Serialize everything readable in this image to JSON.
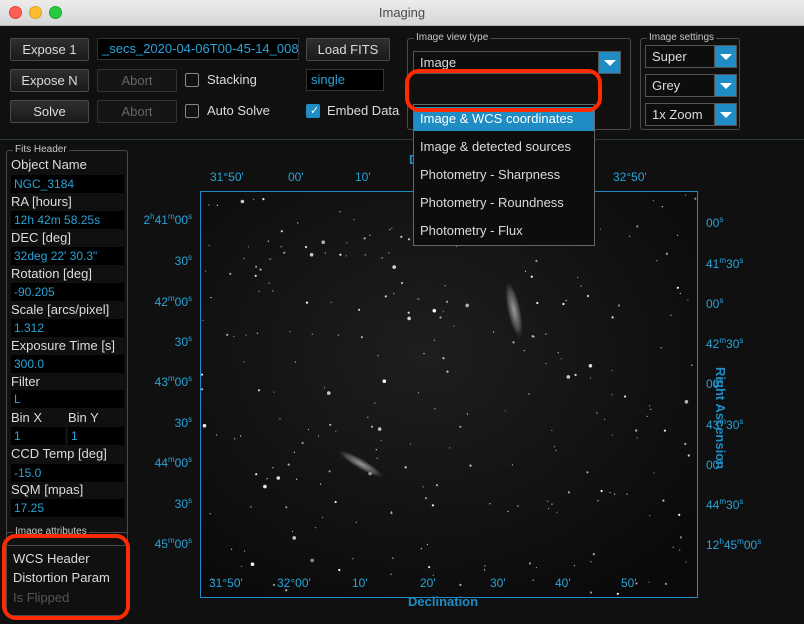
{
  "window": {
    "title": "Imaging"
  },
  "toolbar": {
    "expose1": "Expose 1",
    "exposeN": "Expose N",
    "solve": "Solve",
    "abort1": "Abort",
    "abort2": "Abort",
    "stacking_label": "Stacking",
    "stacking_checked": false,
    "auto_solve_label": "Auto Solve",
    "auto_solve_checked": false,
    "filename": "_secs_2020-04-06T00-45-14_008",
    "load_fits": "Load FITS",
    "mode_field": "single",
    "embed_data_label": "Embed Data",
    "embed_data_checked": true
  },
  "image_view_type": {
    "group_title": "Image view type",
    "current": "Image",
    "options": [
      "Image & WCS coordinates",
      "Image & detected sources",
      "Photometry - Sharpness",
      "Photometry - Roundness",
      "Photometry - Flux"
    ],
    "selected_index": 0
  },
  "image_settings": {
    "group_title": "Image settings",
    "stretch": "Super",
    "palette": "Grey",
    "zoom": "1x Zoom"
  },
  "fits_header": {
    "group_title": "Fits Header",
    "fields": [
      {
        "label": "Object Name",
        "value": "NGC_3184"
      },
      {
        "label": "RA [hours]",
        "value": "12h 42m 58.25s"
      },
      {
        "label": "DEC [deg]",
        "value": "32deg 22' 30.3\""
      },
      {
        "label": "Rotation [deg]",
        "value": "-90.205"
      },
      {
        "label": "Scale [arcs/pixel]",
        "value": "1.312"
      },
      {
        "label": "Exposure Time [s]",
        "value": "300.0"
      },
      {
        "label": "Filter",
        "value": "L"
      },
      {
        "label": "CCD Temp [deg]",
        "value": "-15.0"
      },
      {
        "label": "SQM [mpas]",
        "value": "17.25"
      }
    ],
    "bin_x_label": "Bin X",
    "bin_x_value": "1",
    "bin_y_label": "Bin Y",
    "bin_y_value": "1"
  },
  "image_attributes": {
    "group_title": "Image attributes",
    "items": [
      {
        "label": "WCS Header",
        "enabled": true
      },
      {
        "label": "Distortion Param",
        "enabled": true
      },
      {
        "label": "Is Flipped",
        "enabled": false
      }
    ]
  },
  "plot": {
    "x_axis_title": "Declination",
    "y_axis_title": "Right Ascension",
    "top_axis_title_partial": "D",
    "top_ticks": [
      "31°50'",
      "00'",
      "10'",
      "32°50'"
    ],
    "bottom_ticks": [
      "31°50'",
      "32°00'",
      "10'",
      "20'",
      "30'",
      "40'",
      "50'"
    ],
    "left_ticks": [
      {
        "main": "2",
        "sup": "h",
        "main2": "41",
        "sup2": "m",
        "main3": "00",
        "sup3": "s"
      },
      {
        "main": "30",
        "sup": "s"
      },
      {
        "main": "42",
        "sup": "m",
        "main2": "00",
        "sup2": "s"
      },
      {
        "main": "30",
        "sup": "s"
      },
      {
        "main": "43",
        "sup": "m",
        "main2": "00",
        "sup2": "s"
      },
      {
        "main": "30",
        "sup": "s"
      },
      {
        "main": "44",
        "sup": "m",
        "main2": "00",
        "sup2": "s"
      },
      {
        "main": "30",
        "sup": "s"
      },
      {
        "main": "45",
        "sup": "m",
        "main2": "00",
        "sup2": "s"
      }
    ],
    "right_ticks": [
      {
        "main": "00",
        "sup": "s"
      },
      {
        "main": "41",
        "sup": "m",
        "main2": "30",
        "sup2": "s"
      },
      {
        "main": "00",
        "sup": "s"
      },
      {
        "main": "42",
        "sup": "m",
        "main2": "30",
        "sup2": "s"
      },
      {
        "main": "00",
        "sup": "s"
      },
      {
        "main": "43",
        "sup": "m",
        "main2": "30",
        "sup2": "s"
      },
      {
        "main": "00",
        "sup": "s"
      },
      {
        "main": "44",
        "sup": "m",
        "main2": "30",
        "sup2": "s"
      },
      {
        "main": "12",
        "sup": "h",
        "main2": "45",
        "sup2": "m",
        "main3": "00",
        "sup3": "s"
      }
    ]
  },
  "colors": {
    "accent": "#1f8dc4",
    "value_text": "#2aa3d8",
    "annotation_ring": "#ff2a00"
  }
}
